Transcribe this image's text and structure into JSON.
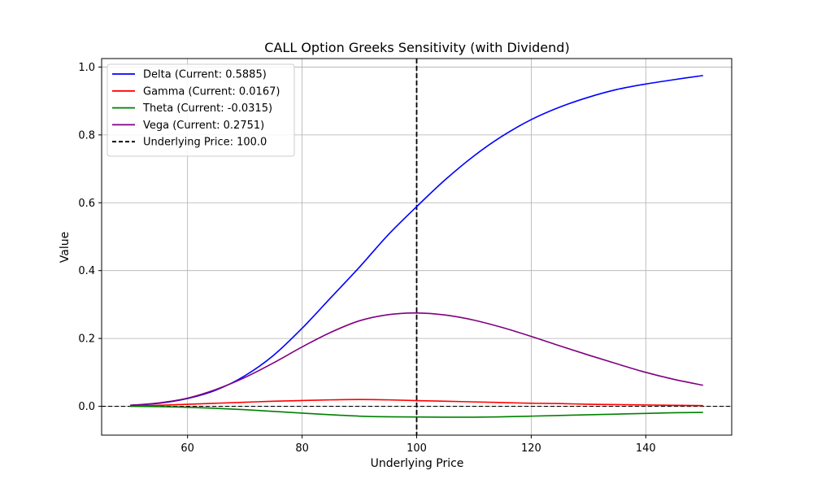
{
  "chart_data": {
    "type": "line",
    "title": "CALL Option Greeks Sensitivity (with Dividend)",
    "xlabel": "Underlying Price",
    "ylabel": "Value",
    "xlim": [
      45,
      155
    ],
    "ylim": [
      -0.085,
      1.025
    ],
    "xticks": [
      60,
      80,
      100,
      120,
      140
    ],
    "yticks": [
      0.0,
      0.2,
      0.4,
      0.6,
      0.8,
      1.0
    ],
    "ytick_labels": [
      "0.0",
      "0.2",
      "0.4",
      "0.6",
      "0.8",
      "1.0"
    ],
    "grid": true,
    "legend_position": "upper-left",
    "x": [
      50,
      55,
      60,
      65,
      70,
      75,
      80,
      85,
      90,
      95,
      100,
      105,
      110,
      115,
      120,
      125,
      130,
      135,
      140,
      145,
      150
    ],
    "series": [
      {
        "name": "Delta (Current: 0.5885)",
        "color": "#0000ff",
        "values": [
          0.003,
          0.009,
          0.023,
          0.048,
          0.09,
          0.15,
          0.23,
          0.32,
          0.41,
          0.505,
          0.5885,
          0.668,
          0.738,
          0.797,
          0.845,
          0.882,
          0.911,
          0.934,
          0.95,
          0.963,
          0.975
        ]
      },
      {
        "name": "Gamma (Current: 0.0167)",
        "color": "#ff0000",
        "values": [
          0.001,
          0.003,
          0.006,
          0.009,
          0.012,
          0.015,
          0.017,
          0.019,
          0.02,
          0.019,
          0.0167,
          0.015,
          0.013,
          0.011,
          0.009,
          0.008,
          0.006,
          0.005,
          0.004,
          0.003,
          0.002
        ]
      },
      {
        "name": "Theta (Current: -0.0315)",
        "color": "#008000",
        "values": [
          0.0,
          -0.001,
          -0.003,
          -0.006,
          -0.01,
          -0.015,
          -0.02,
          -0.025,
          -0.029,
          -0.031,
          -0.0315,
          -0.032,
          -0.032,
          -0.031,
          -0.029,
          -0.027,
          -0.025,
          -0.023,
          -0.021,
          -0.019,
          -0.018
        ]
      },
      {
        "name": "Vega (Current: 0.2751)",
        "color": "#800080",
        "values": [
          0.003,
          0.01,
          0.024,
          0.05,
          0.085,
          0.128,
          0.175,
          0.218,
          0.252,
          0.27,
          0.2751,
          0.269,
          0.254,
          0.232,
          0.206,
          0.178,
          0.151,
          0.125,
          0.1,
          0.079,
          0.062
        ]
      }
    ],
    "reference_lines": [
      {
        "orientation": "vertical",
        "value": 100.0,
        "style": "dashed",
        "color": "#000000",
        "legend": "Underlying Price: 100.0"
      },
      {
        "orientation": "horizontal",
        "value": 0.0,
        "style": "dashed",
        "color": "#000000"
      }
    ]
  }
}
